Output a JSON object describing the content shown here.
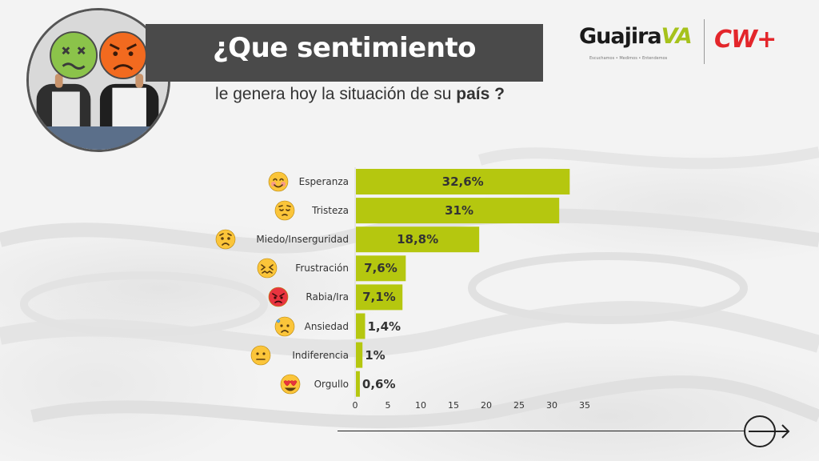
{
  "title": "¿Que sentimiento",
  "subtitle_prefix": "le genera hoy la situación de su ",
  "subtitle_bold": "país ?",
  "logos": {
    "guajira_main": "Guajira",
    "guajira_accent": "VA",
    "guajira_tagline": "Escuchamos  •  Medimos  •  Entendemos",
    "cw": "CW+"
  },
  "colors": {
    "bar": "#b5c70f",
    "title_band": "#4a4a4a",
    "cw_red": "#e3262b",
    "guajira_green": "#a6c21b"
  },
  "chart_data": {
    "type": "bar",
    "orientation": "horizontal",
    "categories": [
      "Esperanza",
      "Tristeza",
      "Miedo/Inserguridad",
      "Frustración",
      "Rabia/Ira",
      "Ansiedad",
      "Indiferencia",
      "Orgullo"
    ],
    "values": [
      32.6,
      31,
      18.8,
      7.6,
      7.1,
      1.4,
      1,
      0.6
    ],
    "value_labels": [
      "32,6%",
      "31%",
      "18,8%",
      "7,6%",
      "7,1%",
      "1,4%",
      "1%",
      "0,6%"
    ],
    "icons": [
      "smiling-blush-emoji-icon",
      "pensive-emoji-icon",
      "anxious-emoji-icon",
      "confounded-emoji-icon",
      "angry-red-emoji-icon",
      "anxious-sweat-emoji-icon",
      "neutral-emoji-icon",
      "heart-eyes-emoji-icon"
    ],
    "xticks": [
      "0",
      "5",
      "10",
      "15",
      "20",
      "25",
      "30",
      "35"
    ],
    "xlim": [
      0,
      35
    ],
    "grid": false,
    "legend": "none"
  }
}
